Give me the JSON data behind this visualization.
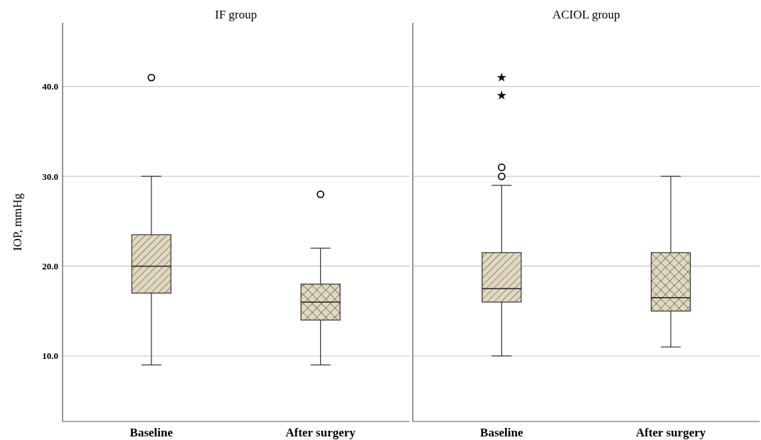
{
  "chart_data": [
    {
      "type": "box",
      "title": "IF group",
      "ylabel": "IOP, mmHg",
      "categories": [
        "Baseline",
        "After surgery"
      ],
      "color": "#e2d8bf",
      "boxes": [
        {
          "low": 9,
          "q1": 17,
          "median": 20,
          "q3": 23.5,
          "high": 30,
          "outliers": [
            41
          ]
        },
        {
          "low": 9,
          "q1": 14,
          "median": 16,
          "q3": 18,
          "high": 22,
          "outliers": [
            28
          ]
        }
      ],
      "ylim": [
        2.7,
        47.1
      ],
      "yticks": [
        {
          "value": 10,
          "label": "10.0"
        },
        {
          "value": 20,
          "label": "20.0"
        },
        {
          "value": 30,
          "label": "30.0"
        },
        {
          "value": 40,
          "label": "40.0"
        }
      ],
      "grid": "y"
    },
    {
      "type": "box",
      "title": "ACIOL group",
      "categories": [
        "Baseline",
        "After surgery"
      ],
      "color": "#e2d8bf",
      "boxes": [
        {
          "low": 10,
          "q1": 16,
          "median": 17.5,
          "q3": 21.5,
          "high": 29,
          "outliers": [
            30,
            31,
            39,
            41
          ]
        },
        {
          "low": 11,
          "q1": 15,
          "median": 16.5,
          "q3": 21.5,
          "high": 30
        }
      ],
      "ylim": [
        2.7,
        47.1
      ],
      "yticks": [
        {
          "value": 10,
          "label": null
        },
        {
          "value": 20,
          "label": null
        },
        {
          "value": 30,
          "label": null
        },
        {
          "value": 40,
          "label": null
        }
      ],
      "grid": "y",
      "tick_labels": "x"
    }
  ]
}
